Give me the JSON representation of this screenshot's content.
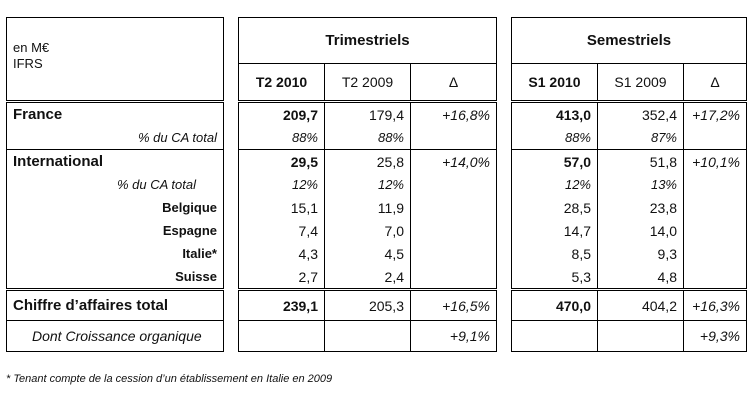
{
  "header": {
    "unit_line1": "en M€",
    "unit_line2": "IFRS",
    "group_quarterly": "Trimestriels",
    "group_semester": "Semestriels",
    "col_t2_2010": "T2 2010",
    "col_t2_2009": "T2 2009",
    "col_delta_q": "Δ",
    "col_s1_2010": "S1 2010",
    "col_s1_2009": "S1 2009",
    "col_delta_s": "Δ"
  },
  "france": {
    "label": "France",
    "t2_2010": "209,7",
    "t2_2009": "179,4",
    "delta_q": "+16,8%",
    "s1_2010": "413,0",
    "s1_2009": "352,4",
    "delta_s": "+17,2%",
    "share_label": "% du CA total",
    "share_t2_2010": "88%",
    "share_t2_2009": "88%",
    "share_s1_2010": "88%",
    "share_s1_2009": "87%"
  },
  "international": {
    "label": "International",
    "t2_2010": "29,5",
    "t2_2009": "25,8",
    "delta_q": "+14,0%",
    "s1_2010": "57,0",
    "s1_2009": "51,8",
    "delta_s": "+10,1%",
    "share_label": "% du CA total",
    "share_t2_2010": "12%",
    "share_t2_2009": "12%",
    "share_s1_2010": "12%",
    "share_s1_2009": "13%",
    "countries": [
      {
        "name": "Belgique",
        "t2_2010": "15,1",
        "t2_2009": "11,9",
        "s1_2010": "28,5",
        "s1_2009": "23,8"
      },
      {
        "name": "Espagne",
        "t2_2010": "7,4",
        "t2_2009": "7,0",
        "s1_2010": "14,7",
        "s1_2009": "14,0"
      },
      {
        "name": "Italie*",
        "t2_2010": "4,3",
        "t2_2009": "4,5",
        "s1_2010": "8,5",
        "s1_2009": "9,3"
      },
      {
        "name": "Suisse",
        "t2_2010": "2,7",
        "t2_2009": "2,4",
        "s1_2010": "5,3",
        "s1_2009": "4,8"
      }
    ]
  },
  "total": {
    "label": "Chiffre d’affaires total",
    "t2_2010": "239,1",
    "t2_2009": "205,3",
    "delta_q": "+16,5%",
    "s1_2010": "470,0",
    "s1_2009": "404,2",
    "delta_s": "+16,3%",
    "organic_label": "Dont Croissance organique",
    "organic_delta_q": "+9,1%",
    "organic_delta_s": "+9,3%"
  },
  "footnote": "* Tenant compte de la cession d’un établissement en Italie en 2009"
}
